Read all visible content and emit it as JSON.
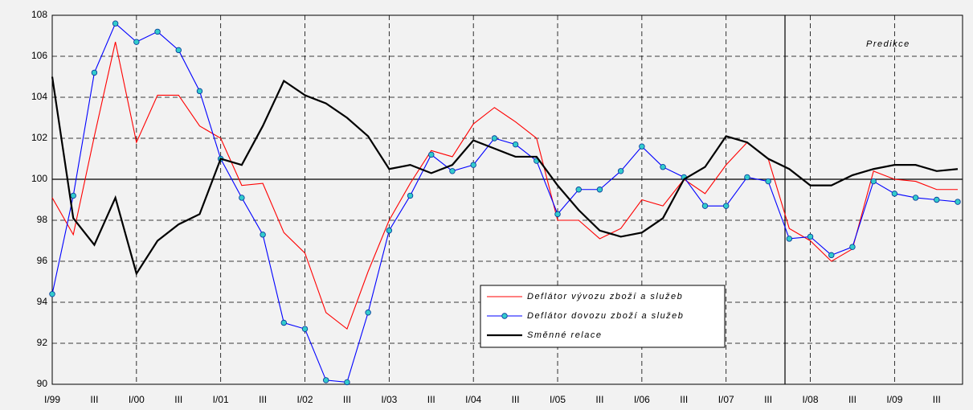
{
  "chart_data": {
    "type": "line",
    "categories": [
      "I/99",
      null,
      "III",
      null,
      "I/00",
      null,
      "III",
      null,
      "I/01",
      null,
      "III",
      null,
      "I/02",
      null,
      "III",
      null,
      "I/03",
      null,
      "III",
      null,
      "I/04",
      null,
      "III",
      null,
      "I/05",
      null,
      "III",
      null,
      "I/06",
      null,
      "III",
      null,
      "I/07",
      null,
      "III",
      null,
      "I/08",
      null,
      "III",
      null,
      "I/09",
      null,
      "III",
      null
    ],
    "series": [
      {
        "name": "Deflátor vývozu zboží a služeb",
        "color": "#ff0000",
        "marker": false,
        "values": [
          99.1,
          97.3,
          102.1,
          106.7,
          101.8,
          104.1,
          104.1,
          102.6,
          102.0,
          99.7,
          99.8,
          97.4,
          96.4,
          93.5,
          92.7,
          95.5,
          98.0,
          99.8,
          101.4,
          101.1,
          102.7,
          103.5,
          102.8,
          102.0,
          98.0,
          98.0,
          97.1,
          97.6,
          99.0,
          98.7,
          100.0,
          99.3,
          100.7,
          101.8,
          101.0,
          97.6,
          97.0,
          96.0,
          96.6,
          100.4,
          100.0,
          99.9,
          99.5,
          99.5
        ]
      },
      {
        "name": "Deflátor dovozu zboží a služeb",
        "color": "#0000ff",
        "marker": true,
        "values": [
          94.4,
          99.2,
          105.2,
          107.6,
          106.7,
          107.2,
          106.3,
          104.3,
          101.0,
          99.1,
          97.3,
          93.0,
          92.7,
          90.2,
          90.1,
          93.5,
          97.5,
          99.2,
          101.2,
          100.4,
          100.7,
          102.0,
          101.7,
          100.9,
          98.3,
          99.5,
          99.5,
          100.4,
          101.6,
          100.6,
          100.1,
          98.7,
          98.7,
          100.1,
          99.9,
          97.1,
          97.2,
          96.3,
          96.7,
          99.9,
          99.3,
          99.1,
          99.0,
          98.9
        ]
      },
      {
        "name": "Směnné relace",
        "color": "#000000",
        "marker": false,
        "values": [
          105.0,
          98.1,
          96.8,
          99.1,
          95.4,
          97.0,
          97.8,
          98.3,
          101.0,
          100.7,
          102.6,
          104.8,
          104.1,
          103.7,
          103.0,
          102.1,
          100.5,
          100.7,
          100.3,
          100.7,
          101.9,
          101.5,
          101.1,
          101.1,
          99.7,
          98.5,
          97.5,
          97.2,
          97.4,
          98.1,
          100.0,
          100.6,
          102.1,
          101.8,
          101.0,
          100.5,
          99.7,
          99.7,
          100.2,
          100.5,
          100.7,
          100.7,
          100.4,
          100.5
        ]
      }
    ],
    "ylim": [
      90,
      108
    ],
    "yticks": [
      90,
      92,
      94,
      96,
      98,
      100,
      102,
      104,
      106,
      108
    ],
    "hline": 100,
    "grid": true,
    "annotation": "Predikce"
  }
}
